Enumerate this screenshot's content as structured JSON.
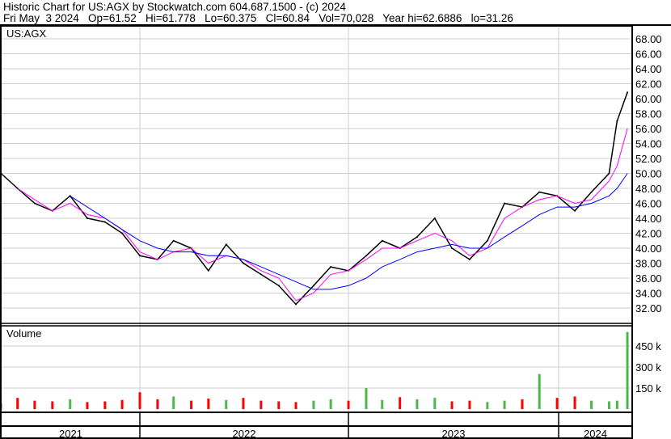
{
  "header": {
    "title": "Historic Chart for US:AGX by Stockwatch.com 604.687.1500 - (c) 2024",
    "quote": "Fri May  3 2024   Op=61.52   Hi=61.778   Lo=60.375   Cl=60.84   Vol=70,028   Year hi=62.6886   lo=31.26"
  },
  "chart_data": [
    {
      "type": "line",
      "title": "US:AGX",
      "ylim": [
        31,
        69
      ],
      "y_ticks": [
        "68.00",
        "66.00",
        "64.00",
        "62.00",
        "60.00",
        "58.00",
        "56.00",
        "54.00",
        "52.00",
        "50.00",
        "48.00",
        "46.00",
        "44.00",
        "42.00",
        "40.00",
        "38.00",
        "36.00",
        "34.00",
        "32.00"
      ],
      "grid": true,
      "colors": {
        "price": "#000000",
        "ma_short": "#ff00ff",
        "ma_long": "#0000ff"
      },
      "x": [
        "2021-05-03",
        "2021-06-01",
        "2021-07-01",
        "2021-08-01",
        "2021-09-01",
        "2021-10-01",
        "2021-11-01",
        "2021-12-01",
        "2022-01-01",
        "2022-02-01",
        "2022-03-01",
        "2022-04-01",
        "2022-05-01",
        "2022-06-01",
        "2022-07-01",
        "2022-08-01",
        "2022-09-01",
        "2022-10-01",
        "2022-11-01",
        "2022-12-01",
        "2023-01-01",
        "2023-02-01",
        "2023-03-01",
        "2023-04-01",
        "2023-05-01",
        "2023-06-01",
        "2023-07-01",
        "2023-08-01",
        "2023-09-01",
        "2023-10-01",
        "2023-11-01",
        "2023-12-01",
        "2024-01-01",
        "2024-02-01",
        "2024-03-01",
        "2024-04-01",
        "2024-04-15",
        "2024-05-03"
      ],
      "series": [
        {
          "key": "price",
          "values": [
            50,
            48,
            46,
            45,
            47,
            44,
            43.5,
            42,
            39,
            38.5,
            41,
            40,
            37,
            40.5,
            38,
            36.5,
            35,
            32.5,
            35,
            37.5,
            37,
            39,
            41,
            40,
            41.5,
            44,
            40,
            38.5,
            41,
            46,
            45.5,
            47.5,
            47,
            45,
            47.5,
            50,
            57,
            60.84
          ]
        },
        {
          "key": "ma_short",
          "values": [
            null,
            48,
            46.5,
            45,
            46,
            44.5,
            44,
            42.5,
            39.5,
            38.5,
            39.5,
            40,
            38,
            39,
            38.5,
            37,
            36,
            33,
            34,
            36.5,
            37,
            38.5,
            40,
            40,
            41,
            42,
            41,
            39,
            40,
            44,
            45.5,
            46.5,
            47,
            46,
            46.5,
            49,
            51,
            56
          ]
        },
        {
          "key": "ma_long",
          "values": [
            null,
            null,
            null,
            null,
            47,
            45.5,
            44,
            42.5,
            41,
            40,
            39.5,
            39.5,
            39,
            39,
            38.5,
            37.5,
            36.5,
            35.5,
            34.5,
            34.5,
            35,
            36,
            37.5,
            38.5,
            39.5,
            40,
            40.5,
            40,
            40,
            41.5,
            43,
            44.5,
            45.5,
            45.5,
            46,
            47,
            48,
            50
          ]
        }
      ]
    },
    {
      "type": "bar",
      "title": "Volume",
      "ylim": [
        0,
        560000
      ],
      "y_ticks": [
        "450 k",
        "300 k",
        "150 k"
      ],
      "colors": {
        "up": "#4cb848",
        "down": "#ff0000"
      },
      "values": [
        40000,
        80000,
        60000,
        55000,
        70000,
        50000,
        55000,
        65000,
        120000,
        70000,
        90000,
        60000,
        75000,
        65000,
        80000,
        60000,
        55000,
        50000,
        60000,
        70000,
        60000,
        150000,
        65000,
        85000,
        70000,
        80000,
        55000,
        60000,
        50000,
        60000,
        70000,
        250000,
        80000,
        90000,
        60000,
        55000,
        60000,
        550000
      ]
    }
  ],
  "x_axis": {
    "years": [
      "2021",
      "2022",
      "2023",
      "2024"
    ]
  }
}
